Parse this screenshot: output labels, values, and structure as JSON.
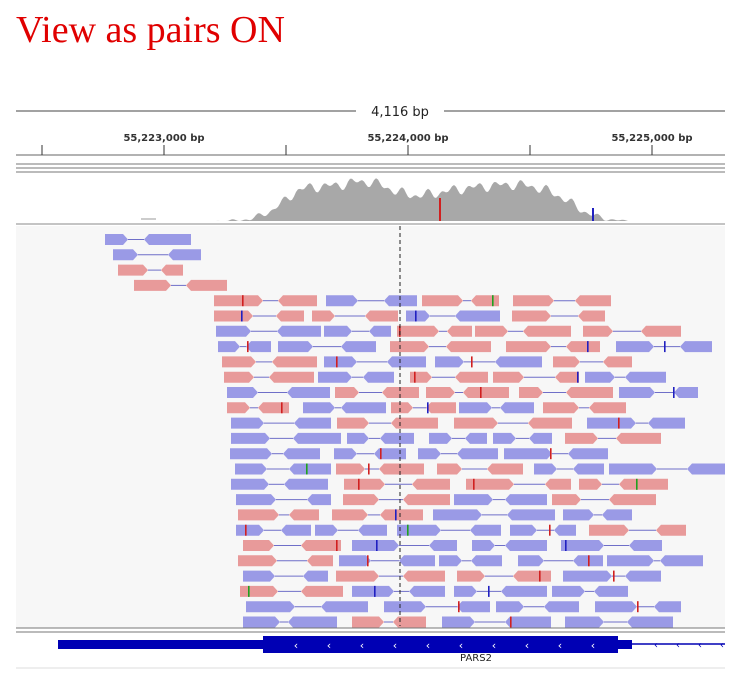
{
  "caption": "View as pairs ON",
  "ruler": {
    "span_label": "4,116 bp",
    "ticks": [
      "55,223,000 bp",
      "55,224,000 bp",
      "55,225,000 bp"
    ]
  },
  "gene": {
    "name": "PARS2",
    "strand_arrow": "‹"
  },
  "colors": {
    "forward_read": "#e89a9a",
    "reverse_read": "#9a9ae6",
    "mate_link": "#6f6fc8",
    "coverage": "#a8a8a8",
    "mismatch_red": "#d02020",
    "mismatch_blue": "#2020c0",
    "mismatch_green": "#20a020",
    "gene_blue": "#0000b4",
    "center_line": "#222222"
  },
  "icons": [
    "strand-arrow-icon"
  ]
}
